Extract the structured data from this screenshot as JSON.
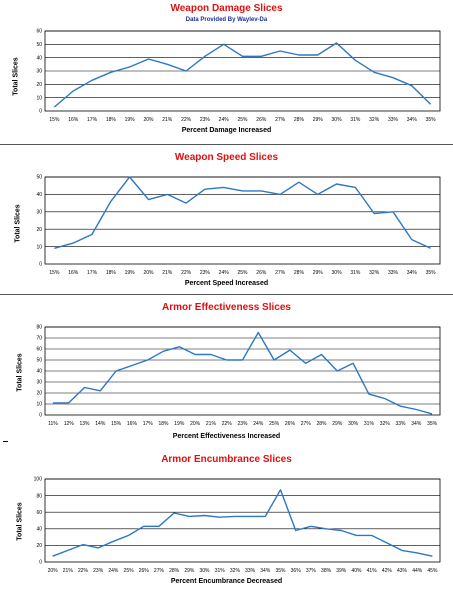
{
  "chart_data": [
    {
      "type": "line",
      "title": "Weapon Damage Slices",
      "subtitle": "Data Provided By Waylev-Da",
      "xlabel": "Percent Damage Increased",
      "ylabel": "Total Slices",
      "categories": [
        "15%",
        "16%",
        "17%",
        "18%",
        "19%",
        "20%",
        "21%",
        "22%",
        "23%",
        "24%",
        "25%",
        "26%",
        "27%",
        "28%",
        "29%",
        "30%",
        "31%",
        "32%",
        "33%",
        "34%",
        "35%"
      ],
      "values": [
        3,
        15,
        23,
        29,
        33,
        39,
        35,
        30,
        41,
        50,
        41,
        41,
        45,
        42,
        42,
        51,
        38,
        29,
        25,
        19,
        5
      ],
      "ylim": [
        0,
        60
      ],
      "yticks": [
        0,
        10,
        20,
        30,
        40,
        50,
        60
      ],
      "color": "#2a78c8",
      "grid": true
    },
    {
      "type": "line",
      "title": "Weapon Speed Slices",
      "xlabel": "Percent Speed Increased",
      "ylabel": "Total Slices",
      "categories": [
        "15%",
        "16%",
        "17%",
        "18%",
        "19%",
        "20%",
        "21%",
        "22%",
        "23%",
        "24%",
        "25%",
        "26%",
        "27%",
        "28%",
        "29%",
        "30%",
        "31%",
        "32%",
        "33%",
        "34%",
        "35%"
      ],
      "values": [
        9,
        12,
        17,
        36,
        50,
        37,
        40,
        35,
        43,
        44,
        42,
        42,
        40,
        47,
        40,
        46,
        44,
        29,
        30,
        14,
        9
      ],
      "ylim": [
        0,
        50
      ],
      "yticks": [
        0,
        10,
        20,
        30,
        40,
        50
      ],
      "color": "#2a78c8",
      "grid": true
    },
    {
      "type": "line",
      "title": "Armor Effectiveness Slices",
      "xlabel": "Percent Effectiveness Increased",
      "ylabel": "Total Slices",
      "categories": [
        "11%",
        "12%",
        "13%",
        "14%",
        "15%",
        "16%",
        "17%",
        "18%",
        "19%",
        "20%",
        "21%",
        "22%",
        "23%",
        "24%",
        "25%",
        "26%",
        "27%",
        "28%",
        "29%",
        "30%",
        "31%",
        "32%",
        "33%",
        "34%",
        "35%"
      ],
      "values": [
        11,
        11,
        25,
        22,
        40,
        45,
        50,
        58,
        62,
        55,
        55,
        50,
        50,
        75,
        50,
        59,
        47,
        55,
        40,
        47,
        19,
        15,
        8,
        5,
        1
      ],
      "ylim": [
        0,
        80
      ],
      "yticks": [
        0,
        10,
        20,
        30,
        40,
        50,
        60,
        70,
        80
      ],
      "color": "#2a78c8",
      "grid": true
    },
    {
      "type": "line",
      "title": "Armor Encumbrance Slices",
      "xlabel": "Percent Encumbrance Decreased",
      "ylabel": "Total Slices",
      "categories": [
        "20%",
        "21%",
        "22%",
        "23%",
        "24%",
        "25%",
        "26%",
        "27%",
        "28%",
        "29%",
        "30%",
        "31%",
        "32%",
        "33%",
        "34%",
        "35%",
        "36%",
        "37%",
        "38%",
        "39%",
        "40%",
        "41%",
        "42%",
        "43%",
        "44%",
        "45%"
      ],
      "values": [
        7,
        14,
        21,
        17,
        25,
        32,
        43,
        43,
        59,
        55,
        56,
        54,
        55,
        55,
        55,
        87,
        38,
        43,
        40,
        38,
        32,
        32,
        23,
        14,
        11,
        7
      ],
      "ylim": [
        0,
        100
      ],
      "yticks": [
        0,
        20,
        40,
        60,
        80,
        100
      ],
      "color": "#2a78c8",
      "grid": true
    }
  ]
}
